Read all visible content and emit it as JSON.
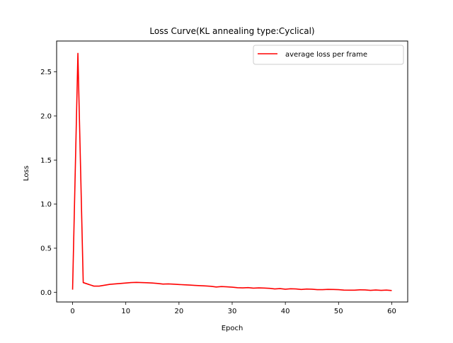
{
  "chart_data": {
    "type": "line",
    "title": "Loss Curve(KL annealing type:Cyclical)",
    "xlabel": "Epoch",
    "ylabel": "Loss",
    "xlim": [
      -3,
      63
    ],
    "ylim": [
      -0.11,
      2.85
    ],
    "xticks": [
      0,
      10,
      20,
      30,
      40,
      50,
      60
    ],
    "yticks": [
      0.0,
      0.5,
      1.0,
      1.5,
      2.0,
      2.5
    ],
    "ytick_labels": [
      "0.0",
      "0.5",
      "1.0",
      "1.5",
      "2.0",
      "2.5"
    ],
    "grid": false,
    "legend_position": "top-right",
    "series": [
      {
        "name": "average loss per frame",
        "color": "#ff0000",
        "x": [
          0,
          1,
          2,
          3,
          4,
          5,
          6,
          7,
          8,
          9,
          10,
          11,
          12,
          13,
          14,
          15,
          16,
          17,
          18,
          19,
          20,
          21,
          22,
          23,
          24,
          25,
          26,
          27,
          28,
          29,
          30,
          31,
          32,
          33,
          34,
          35,
          36,
          37,
          38,
          39,
          40,
          41,
          42,
          43,
          44,
          45,
          46,
          47,
          48,
          49,
          50,
          51,
          52,
          53,
          54,
          55,
          56,
          57,
          58,
          59,
          60
        ],
        "y": [
          0.03,
          2.71,
          0.11,
          0.09,
          0.07,
          0.07,
          0.08,
          0.09,
          0.095,
          0.1,
          0.105,
          0.11,
          0.112,
          0.11,
          0.108,
          0.105,
          0.1,
          0.093,
          0.095,
          0.092,
          0.088,
          0.085,
          0.082,
          0.078,
          0.075,
          0.072,
          0.068,
          0.06,
          0.065,
          0.062,
          0.058,
          0.052,
          0.05,
          0.053,
          0.047,
          0.05,
          0.048,
          0.045,
          0.038,
          0.042,
          0.035,
          0.04,
          0.038,
          0.032,
          0.037,
          0.035,
          0.03,
          0.03,
          0.033,
          0.032,
          0.03,
          0.025,
          0.024,
          0.024,
          0.028,
          0.027,
          0.022,
          0.026,
          0.022,
          0.025,
          0.02
        ]
      }
    ]
  }
}
